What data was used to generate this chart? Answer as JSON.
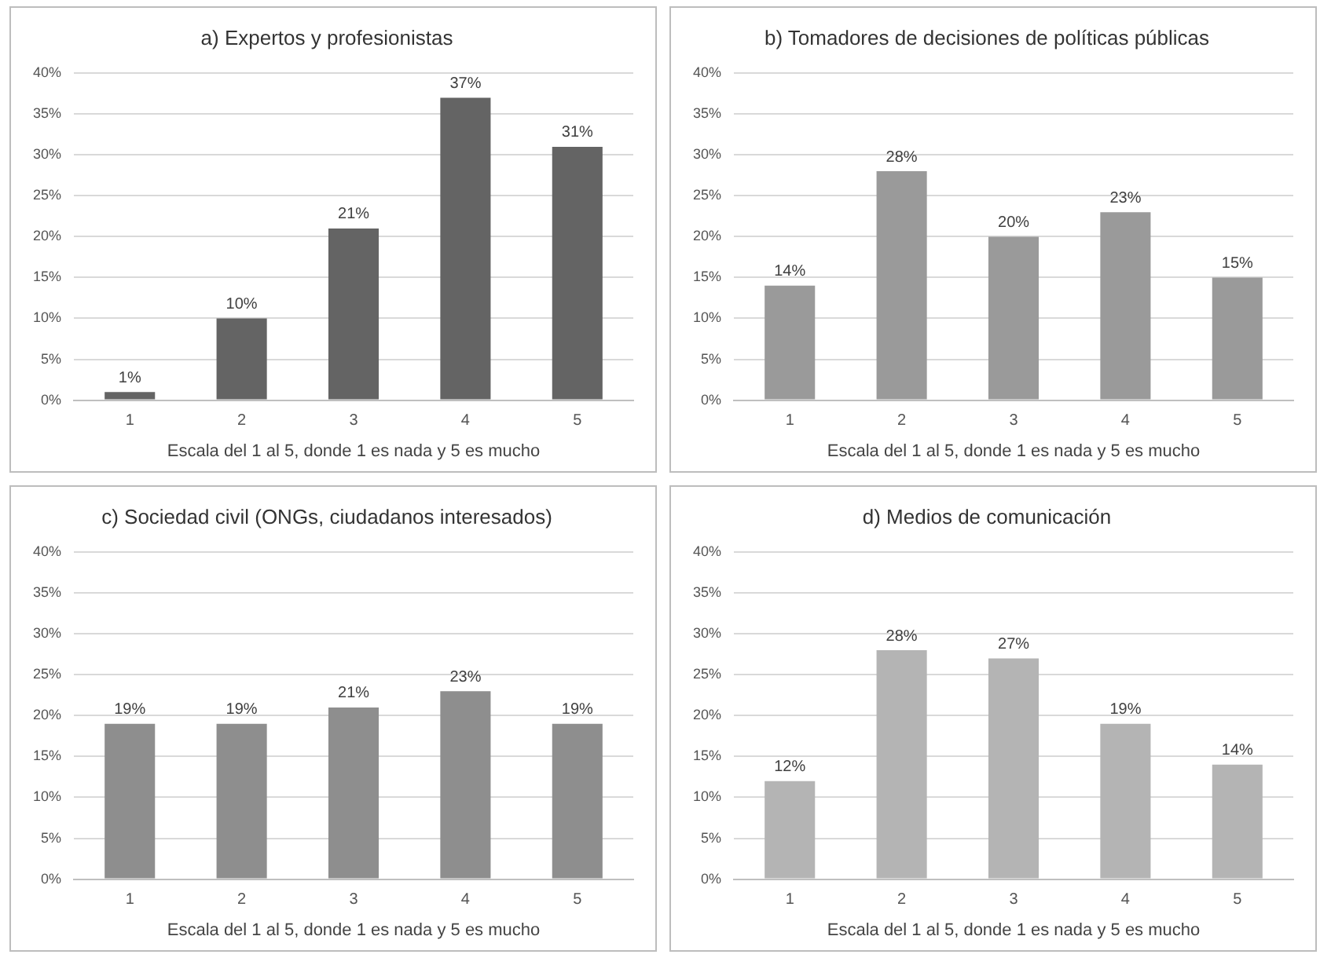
{
  "chart_data": [
    {
      "type": "bar",
      "title": "a) Expertos y profesionistas",
      "xlabel": "Escala del 1 al 5, donde 1 es nada y 5 es mucho",
      "categories": [
        "1",
        "2",
        "3",
        "4",
        "5"
      ],
      "values": [
        1,
        10,
        21,
        37,
        31
      ],
      "value_labels": [
        "1%",
        "10%",
        "21%",
        "37%",
        "31%"
      ],
      "color": "#646464",
      "ylim": [
        0,
        40
      ],
      "yticks": [
        {
          "value": 0,
          "label": "0%"
        },
        {
          "value": 5,
          "label": "5%"
        },
        {
          "value": 10,
          "label": "10%"
        },
        {
          "value": 15,
          "label": "15%"
        },
        {
          "value": 20,
          "label": "20%"
        },
        {
          "value": 25,
          "label": "25%"
        },
        {
          "value": 30,
          "label": "30%"
        },
        {
          "value": 35,
          "label": "35%"
        },
        {
          "value": 40,
          "label": "40%"
        }
      ],
      "grid": "y"
    },
    {
      "type": "bar",
      "title": "b) Tomadores de decisiones de políticas públicas",
      "xlabel": "Escala del 1 al 5, donde 1 es nada y 5 es mucho",
      "categories": [
        "1",
        "2",
        "3",
        "4",
        "5"
      ],
      "values": [
        14,
        28,
        20,
        23,
        15
      ],
      "value_labels": [
        "14%",
        "28%",
        "20%",
        "23%",
        "15%"
      ],
      "color": "#9a9a9a",
      "ylim": [
        0,
        40
      ],
      "yticks": [
        {
          "value": 0,
          "label": "0%"
        },
        {
          "value": 5,
          "label": "5%"
        },
        {
          "value": 10,
          "label": "10%"
        },
        {
          "value": 15,
          "label": "15%"
        },
        {
          "value": 20,
          "label": "20%"
        },
        {
          "value": 25,
          "label": "25%"
        },
        {
          "value": 30,
          "label": "30%"
        },
        {
          "value": 35,
          "label": "35%"
        },
        {
          "value": 40,
          "label": "40%"
        }
      ],
      "grid": "y"
    },
    {
      "type": "bar",
      "title": "c) Sociedad civil (ONGs, ciudadanos interesados)",
      "xlabel": "Escala del 1 al 5, donde 1 es nada y 5 es mucho",
      "categories": [
        "1",
        "2",
        "3",
        "4",
        "5"
      ],
      "values": [
        19,
        19,
        21,
        23,
        19
      ],
      "value_labels": [
        "19%",
        "19%",
        "21%",
        "23%",
        "19%"
      ],
      "color": "#8e8e8e",
      "ylim": [
        0,
        40
      ],
      "yticks": [
        {
          "value": 0,
          "label": "0%"
        },
        {
          "value": 5,
          "label": "5%"
        },
        {
          "value": 10,
          "label": "10%"
        },
        {
          "value": 15,
          "label": "15%"
        },
        {
          "value": 20,
          "label": "20%"
        },
        {
          "value": 25,
          "label": "25%"
        },
        {
          "value": 30,
          "label": "30%"
        },
        {
          "value": 35,
          "label": "35%"
        },
        {
          "value": 40,
          "label": "40%"
        }
      ],
      "grid": "y"
    },
    {
      "type": "bar",
      "title": "d) Medios de comunicación",
      "xlabel": "Escala del 1 al 5, donde 1 es nada y 5 es mucho",
      "categories": [
        "1",
        "2",
        "3",
        "4",
        "5"
      ],
      "values": [
        12,
        28,
        27,
        19,
        14
      ],
      "value_labels": [
        "12%",
        "28%",
        "27%",
        "19%",
        "14%"
      ],
      "color": "#b4b4b4",
      "ylim": [
        0,
        40
      ],
      "yticks": [
        {
          "value": 0,
          "label": "0%"
        },
        {
          "value": 5,
          "label": "5%"
        },
        {
          "value": 10,
          "label": "10%"
        },
        {
          "value": 15,
          "label": "15%"
        },
        {
          "value": 20,
          "label": "20%"
        },
        {
          "value": 25,
          "label": "25%"
        },
        {
          "value": 30,
          "label": "30%"
        },
        {
          "value": 35,
          "label": "35%"
        },
        {
          "value": 40,
          "label": "40%"
        }
      ],
      "grid": "y"
    }
  ]
}
